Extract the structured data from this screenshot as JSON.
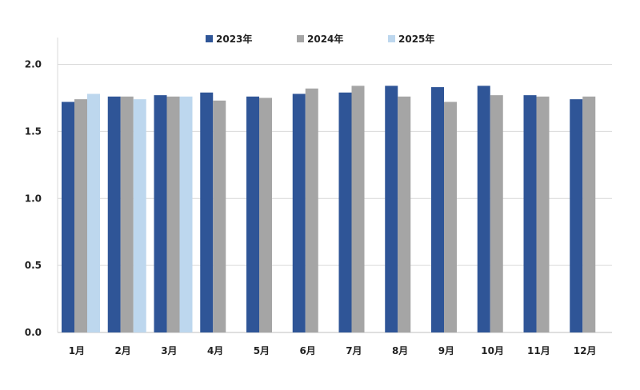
{
  "chart_data": {
    "type": "bar",
    "title": "",
    "xlabel": "",
    "ylabel": "",
    "categories": [
      "1月",
      "2月",
      "3月",
      "4月",
      "5月",
      "6月",
      "7月",
      "8月",
      "9月",
      "10月",
      "11月",
      "12月"
    ],
    "series": [
      {
        "name": "2023年",
        "color": "#2F5597",
        "values": [
          1.72,
          1.76,
          1.77,
          1.79,
          1.76,
          1.78,
          1.79,
          1.84,
          1.83,
          1.84,
          1.77,
          1.74
        ]
      },
      {
        "name": "2024年",
        "color": "#A5A5A5",
        "values": [
          1.74,
          1.76,
          1.76,
          1.73,
          1.75,
          1.82,
          1.84,
          1.76,
          1.72,
          1.77,
          1.76,
          1.76
        ]
      },
      {
        "name": "2025年",
        "color": "#BDD7EE",
        "values": [
          1.78,
          1.74,
          1.76,
          null,
          null,
          null,
          null,
          null,
          null,
          null,
          null,
          null
        ]
      }
    ],
    "ylim": [
      0,
      2.2
    ],
    "yticks": [
      "0.0",
      "0.5",
      "1.0",
      "1.5",
      "2.0"
    ],
    "grid": true,
    "legend_position": "top-center"
  }
}
